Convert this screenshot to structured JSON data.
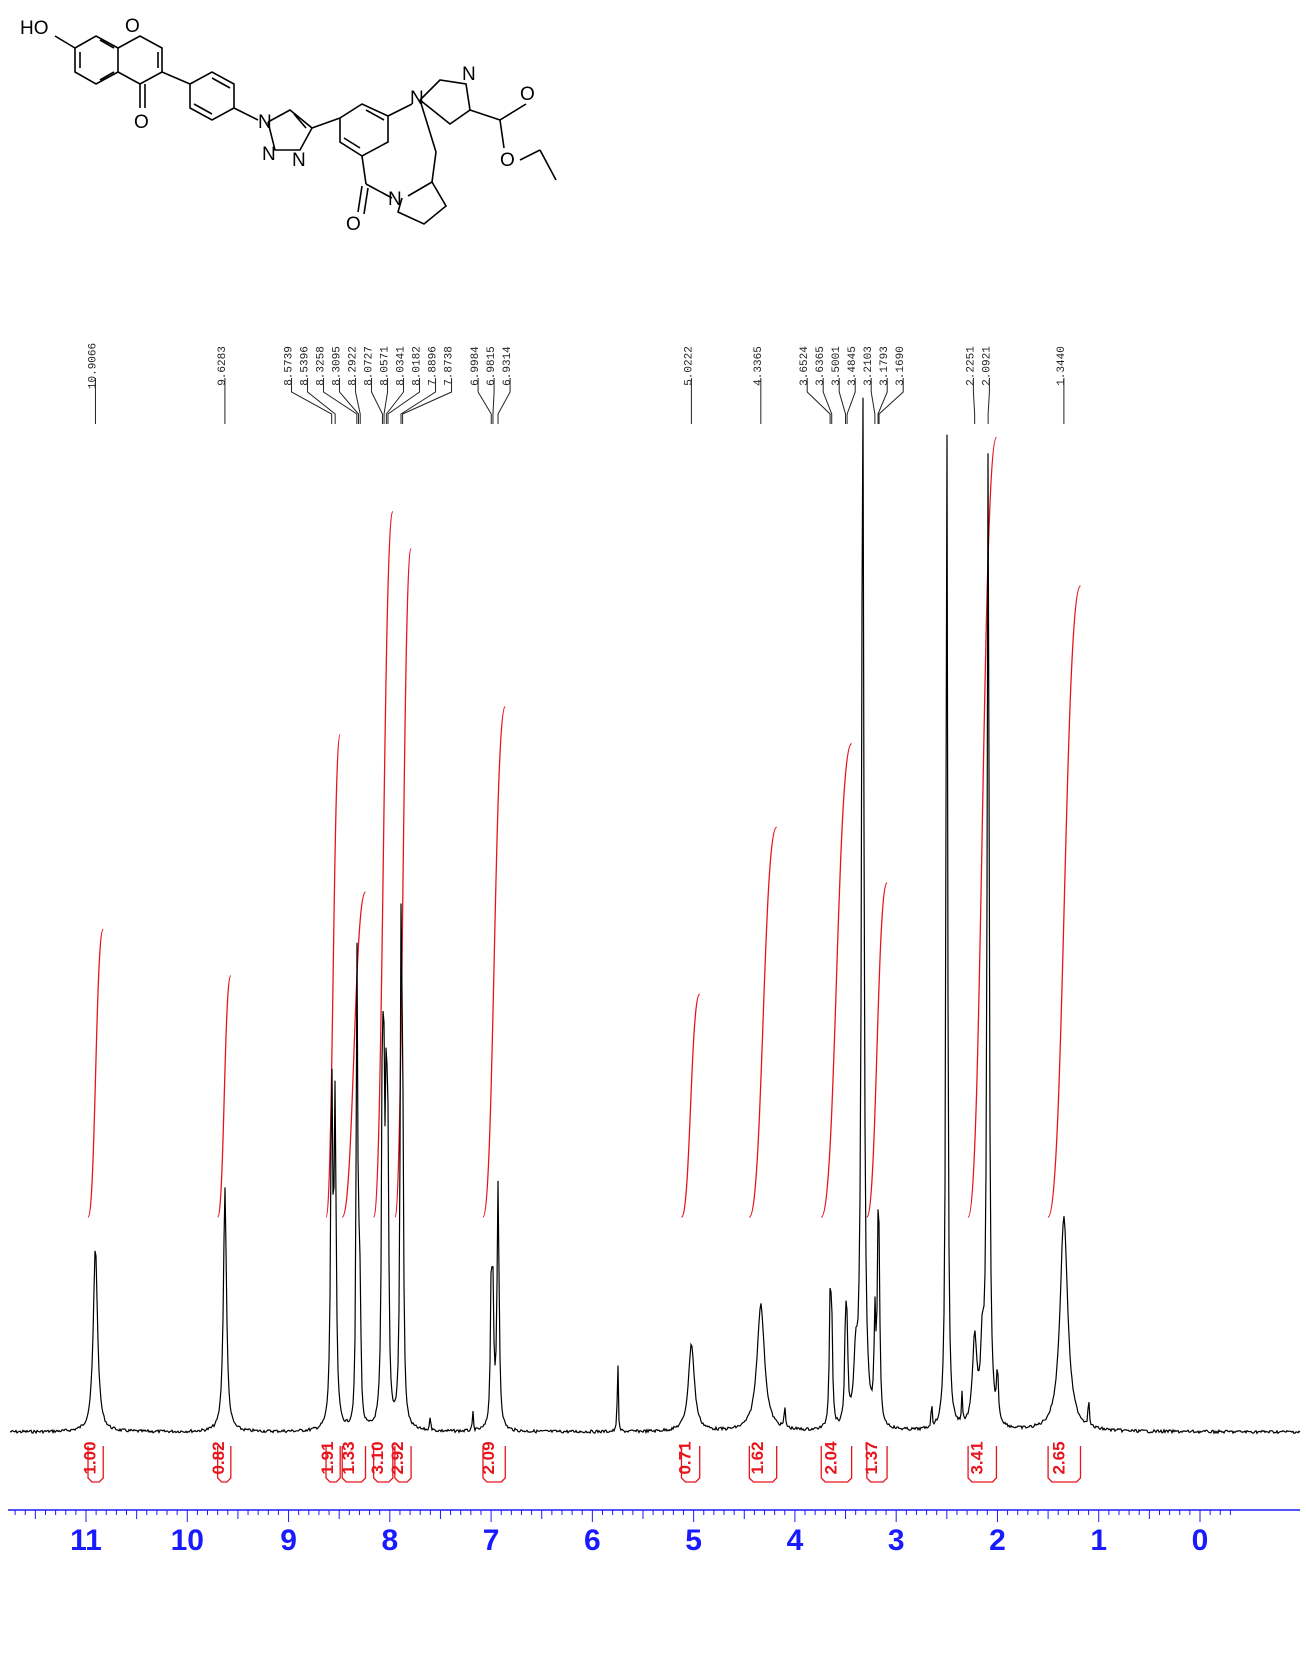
{
  "colors": {
    "spectrum": "#000000",
    "integral": "#e8141c",
    "axis": "#1a1aff",
    "peak_label": "#222222"
  },
  "molecule": {
    "atoms": [
      "HO",
      "O",
      "O",
      "N",
      "N",
      "N",
      "N",
      "N",
      "O",
      "O",
      "O",
      "N"
    ]
  },
  "chart_data": {
    "type": "nmr_spectrum",
    "x_unit": "ppm",
    "xlim": [
      11.4,
      -0.35
    ],
    "x_reversed": true,
    "ticks": [
      11,
      10,
      9,
      8,
      7,
      6,
      5,
      4,
      3,
      2,
      1,
      0
    ],
    "peak_labels": [
      "10.9066",
      "9.6283",
      "8.5739",
      "8.5396",
      "8.3258",
      "8.3095",
      "8.2922",
      "8.0727",
      "8.0571",
      "8.0341",
      "8.0182",
      "7.8896",
      "7.8738",
      "6.9984",
      "6.9815",
      "6.9314",
      "5.0222",
      "4.3365",
      "3.6524",
      "3.6365",
      "3.5001",
      "3.4845",
      "3.2103",
      "3.1793",
      "3.1690",
      "2.2251",
      "2.0921",
      "1.3440"
    ],
    "peaks": [
      {
        "ppm": 10.907,
        "height": 0.19,
        "width": 0.025
      },
      {
        "ppm": 9.628,
        "height": 0.25,
        "width": 0.018
      },
      {
        "ppm": 8.574,
        "height": 0.35,
        "width": 0.012
      },
      {
        "ppm": 8.54,
        "height": 0.32,
        "width": 0.012
      },
      {
        "ppm": 8.326,
        "height": 0.48,
        "width": 0.008
      },
      {
        "ppm": 8.309,
        "height": 0.16,
        "width": 0.008
      },
      {
        "ppm": 8.292,
        "height": 0.12,
        "width": 0.008
      },
      {
        "ppm": 8.073,
        "height": 0.36,
        "width": 0.01
      },
      {
        "ppm": 8.057,
        "height": 0.25,
        "width": 0.01
      },
      {
        "ppm": 8.034,
        "height": 0.3,
        "width": 0.01
      },
      {
        "ppm": 8.018,
        "height": 0.22,
        "width": 0.01
      },
      {
        "ppm": 7.89,
        "height": 0.45,
        "width": 0.01
      },
      {
        "ppm": 7.874,
        "height": 0.3,
        "width": 0.01
      },
      {
        "ppm": 7.6,
        "height": 0.02,
        "width": 0.005
      },
      {
        "ppm": 7.18,
        "height": 0.02,
        "width": 0.005
      },
      {
        "ppm": 6.998,
        "height": 0.14,
        "width": 0.01
      },
      {
        "ppm": 6.982,
        "height": 0.12,
        "width": 0.01
      },
      {
        "ppm": 6.931,
        "height": 0.25,
        "width": 0.012
      },
      {
        "ppm": 5.75,
        "height": 0.11,
        "width": 0.004
      },
      {
        "ppm": 5.022,
        "height": 0.09,
        "width": 0.035
      },
      {
        "ppm": 4.337,
        "height": 0.13,
        "width": 0.045
      },
      {
        "ppm": 4.1,
        "height": 0.02,
        "width": 0.008
      },
      {
        "ppm": 3.652,
        "height": 0.12,
        "width": 0.01
      },
      {
        "ppm": 3.637,
        "height": 0.1,
        "width": 0.01
      },
      {
        "ppm": 3.5,
        "height": 0.1,
        "width": 0.01
      },
      {
        "ppm": 3.485,
        "height": 0.08,
        "width": 0.01
      },
      {
        "ppm": 3.4,
        "height": 0.06,
        "width": 0.02
      },
      {
        "ppm": 3.33,
        "height": 1.08,
        "width": 0.014
      },
      {
        "ppm": 3.21,
        "height": 0.1,
        "width": 0.01
      },
      {
        "ppm": 3.179,
        "height": 0.15,
        "width": 0.01
      },
      {
        "ppm": 3.169,
        "height": 0.12,
        "width": 0.01
      },
      {
        "ppm": 2.65,
        "height": 0.03,
        "width": 0.005
      },
      {
        "ppm": 2.5,
        "height": 1.05,
        "width": 0.01
      },
      {
        "ppm": 2.35,
        "height": 0.03,
        "width": 0.006
      },
      {
        "ppm": 2.225,
        "height": 0.09,
        "width": 0.025
      },
      {
        "ppm": 2.15,
        "height": 0.07,
        "width": 0.02
      },
      {
        "ppm": 2.092,
        "height": 1.0,
        "width": 0.012
      },
      {
        "ppm": 2.0,
        "height": 0.05,
        "width": 0.01
      },
      {
        "ppm": 1.344,
        "height": 0.22,
        "width": 0.045
      },
      {
        "ppm": 1.1,
        "height": 0.04,
        "width": 0.005
      }
    ],
    "integrals": [
      {
        "label": "1.00",
        "from": 10.98,
        "to": 10.83,
        "ppm": 10.907,
        "rise": 0.31
      },
      {
        "label": "0.82",
        "from": 9.7,
        "to": 9.57,
        "ppm": 9.628,
        "rise": 0.26
      },
      {
        "label": "1.91",
        "from": 8.63,
        "to": 8.49,
        "ppm": 8.56,
        "rise": 0.52
      },
      {
        "label": "1.33",
        "from": 8.47,
        "to": 8.24,
        "ppm": 8.31,
        "rise": 0.35
      },
      {
        "label": "3.10",
        "from": 8.16,
        "to": 7.97,
        "ppm": 8.05,
        "rise": 0.76
      },
      {
        "label": "2.92",
        "from": 7.95,
        "to": 7.79,
        "ppm": 7.88,
        "rise": 0.72
      },
      {
        "label": "2.09",
        "from": 7.08,
        "to": 6.86,
        "ppm": 6.96,
        "rise": 0.55
      },
      {
        "label": "0.71",
        "from": 5.12,
        "to": 4.94,
        "ppm": 5.022,
        "rise": 0.24
      },
      {
        "label": "1.62",
        "from": 4.45,
        "to": 4.18,
        "ppm": 4.337,
        "rise": 0.42
      },
      {
        "label": "2.04",
        "from": 3.74,
        "to": 3.44,
        "ppm": 3.58,
        "rise": 0.51
      },
      {
        "label": "1.37",
        "from": 3.29,
        "to": 3.09,
        "ppm": 3.19,
        "rise": 0.36
      },
      {
        "label": "3.41",
        "from": 2.29,
        "to": 2.01,
        "ppm": 2.15,
        "rise": 0.84
      },
      {
        "label": "2.65",
        "from": 1.5,
        "to": 1.18,
        "ppm": 1.344,
        "rise": 0.68
      }
    ]
  }
}
